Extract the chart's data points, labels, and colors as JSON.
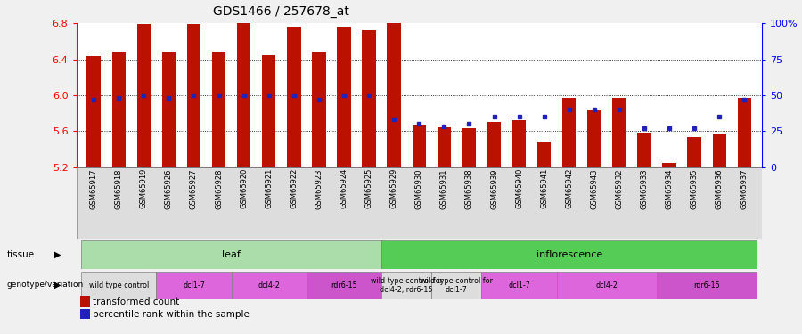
{
  "title": "GDS1466 / 257678_at",
  "samples": [
    "GSM65917",
    "GSM65918",
    "GSM65919",
    "GSM65926",
    "GSM65927",
    "GSM65928",
    "GSM65920",
    "GSM65921",
    "GSM65922",
    "GSM65923",
    "GSM65924",
    "GSM65925",
    "GSM65929",
    "GSM65930",
    "GSM65931",
    "GSM65938",
    "GSM65939",
    "GSM65940",
    "GSM65941",
    "GSM65942",
    "GSM65943",
    "GSM65932",
    "GSM65933",
    "GSM65934",
    "GSM65935",
    "GSM65936",
    "GSM65937"
  ],
  "transformed_count": [
    6.44,
    6.48,
    6.79,
    6.48,
    6.79,
    6.48,
    6.8,
    6.45,
    6.76,
    6.48,
    6.76,
    6.72,
    6.8,
    5.67,
    5.64,
    5.63,
    5.7,
    5.72,
    5.48,
    5.97,
    5.84,
    5.97,
    5.58,
    5.24,
    5.53,
    5.57,
    5.97
  ],
  "percentile": [
    47,
    48,
    50,
    48,
    50,
    50,
    50,
    50,
    50,
    47,
    50,
    50,
    33,
    30,
    28,
    30,
    35,
    35,
    35,
    40,
    40,
    40,
    27,
    27,
    27,
    35,
    47
  ],
  "ymin": 5.2,
  "ymax": 6.8,
  "yticks": [
    5.2,
    5.6,
    6.0,
    6.4,
    6.8
  ],
  "right_yticklabels": [
    "0",
    "25",
    "50",
    "75",
    "100%"
  ],
  "right_ytick_pct": [
    0,
    25,
    50,
    75,
    100
  ],
  "bar_color": "#bb1100",
  "dot_color": "#2222bb",
  "bg_color": "#f0f0f0",
  "legend_red_label": "transformed count",
  "legend_blue_label": "percentile rank within the sample",
  "tissue_groups": [
    {
      "label": "leaf",
      "start": 0,
      "end": 11,
      "color": "#aaddaa"
    },
    {
      "label": "inflorescence",
      "start": 12,
      "end": 26,
      "color": "#55cc55"
    }
  ],
  "geno_groups": [
    {
      "label": "wild type control",
      "start": 0,
      "end": 2,
      "color": "#dddddd"
    },
    {
      "label": "dcl1-7",
      "start": 3,
      "end": 5,
      "color": "#dd66dd"
    },
    {
      "label": "dcl4-2",
      "start": 6,
      "end": 8,
      "color": "#dd66dd"
    },
    {
      "label": "rdr6-15",
      "start": 9,
      "end": 11,
      "color": "#cc55cc"
    },
    {
      "label": "wild type control for\ndcl4-2, rdr6-15",
      "start": 12,
      "end": 13,
      "color": "#dddddd"
    },
    {
      "label": "wild type control for\ndcl1-7",
      "start": 14,
      "end": 15,
      "color": "#dddddd"
    },
    {
      "label": "dcl1-7",
      "start": 16,
      "end": 18,
      "color": "#dd66dd"
    },
    {
      "label": "dcl4-2",
      "start": 19,
      "end": 22,
      "color": "#dd66dd"
    },
    {
      "label": "rdr6-15",
      "start": 23,
      "end": 26,
      "color": "#cc55cc"
    }
  ]
}
